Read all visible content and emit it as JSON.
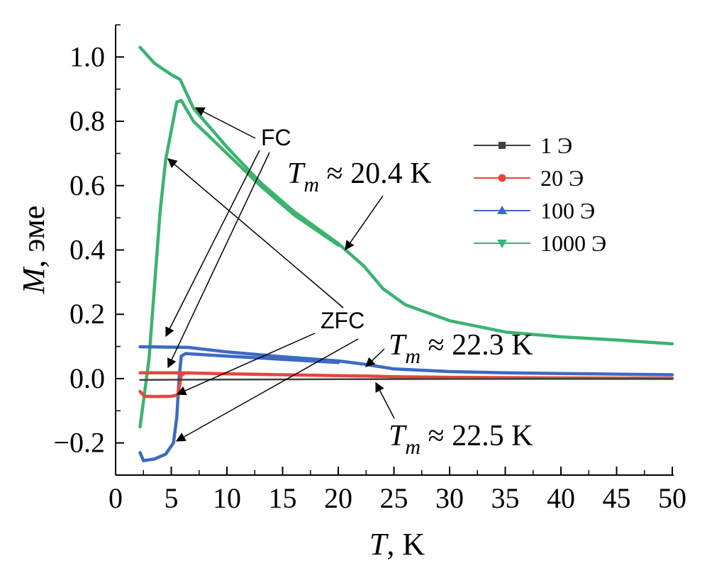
{
  "chart_data": {
    "type": "line",
    "xlabel": {
      "italic": "T",
      "rest": ", K"
    },
    "ylabel": {
      "italic": "M",
      "rest": ", эме"
    },
    "xlim": [
      0,
      50
    ],
    "ylim": [
      -0.3,
      1.1
    ],
    "xticks": [
      "0",
      "5",
      "10",
      "15",
      "20",
      "25",
      "30",
      "35",
      "40",
      "45",
      "50"
    ],
    "yticks": [
      "−0.2",
      "0.0",
      "0.2",
      "0.4",
      "0.6",
      "0.8",
      "1.0"
    ],
    "ytick_values": [
      -0.2,
      0.0,
      0.2,
      0.4,
      0.6,
      0.8,
      1.0
    ],
    "grid": false,
    "legend_position": "upper-right",
    "series": [
      {
        "name": "1 Э",
        "color": "#404040",
        "marker": "square",
        "fc": [
          [
            2.2,
            -0.004
          ],
          [
            10,
            -0.003
          ],
          [
            20,
            -0.002
          ],
          [
            30,
            -0.001
          ],
          [
            40,
            -0.001
          ],
          [
            50,
            -0.001
          ]
        ],
        "zfc": []
      },
      {
        "name": "20 Э",
        "color": "#e8453c",
        "marker": "circle",
        "fc": [
          [
            2.2,
            0.018
          ],
          [
            6,
            0.018
          ],
          [
            10,
            0.015
          ],
          [
            15,
            0.012
          ],
          [
            20,
            0.009
          ],
          [
            22.5,
            0.008
          ],
          [
            25,
            0.006
          ],
          [
            30,
            0.004
          ],
          [
            40,
            0.002
          ],
          [
            50,
            0.001
          ]
        ],
        "zfc": [
          [
            2.2,
            -0.04
          ],
          [
            2.6,
            -0.055
          ],
          [
            3.5,
            -0.056
          ],
          [
            5.0,
            -0.055
          ],
          [
            5.6,
            -0.05
          ],
          [
            5.9,
            0.01
          ],
          [
            6.1,
            0.015
          ]
        ]
      },
      {
        "name": "100 Э",
        "color": "#3c6bc2",
        "marker": "triangle-up",
        "fc": [
          [
            2.2,
            0.099
          ],
          [
            6.5,
            0.097
          ],
          [
            10,
            0.083
          ],
          [
            15,
            0.068
          ],
          [
            20,
            0.055
          ],
          [
            22.3,
            0.045
          ],
          [
            25,
            0.03
          ],
          [
            30,
            0.022
          ],
          [
            35,
            0.018
          ],
          [
            40,
            0.016
          ],
          [
            50,
            0.012
          ]
        ],
        "zfc": [
          [
            2.2,
            -0.23
          ],
          [
            2.5,
            -0.255
          ],
          [
            3.5,
            -0.25
          ],
          [
            4.5,
            -0.235
          ],
          [
            5.2,
            -0.2
          ],
          [
            5.5,
            -0.12
          ],
          [
            5.7,
            0.0
          ],
          [
            5.9,
            0.07
          ],
          [
            6.3,
            0.078
          ],
          [
            10,
            0.07
          ],
          [
            15,
            0.06
          ],
          [
            20,
            0.05
          ]
        ]
      },
      {
        "name": "1000 Э",
        "color": "#3cb371",
        "marker": "triangle-down",
        "fc": [
          [
            2.2,
            1.03
          ],
          [
            3.5,
            0.98
          ],
          [
            5.0,
            0.945
          ],
          [
            5.8,
            0.93
          ],
          [
            7,
            0.84
          ],
          [
            10,
            0.72
          ],
          [
            13,
            0.61
          ],
          [
            16,
            0.52
          ],
          [
            20,
            0.42
          ],
          [
            22.3,
            0.35
          ],
          [
            24,
            0.28
          ],
          [
            26,
            0.23
          ],
          [
            30,
            0.18
          ],
          [
            35,
            0.145
          ],
          [
            40,
            0.13
          ],
          [
            45,
            0.12
          ],
          [
            50,
            0.108
          ]
        ],
        "zfc": [
          [
            2.2,
            -0.15
          ],
          [
            3,
            0.06
          ],
          [
            4,
            0.52
          ],
          [
            4.5,
            0.68
          ],
          [
            5.5,
            0.86
          ],
          [
            5.9,
            0.865
          ],
          [
            7,
            0.8
          ],
          [
            10,
            0.7
          ],
          [
            13,
            0.6
          ],
          [
            16,
            0.51
          ],
          [
            20,
            0.415
          ]
        ]
      }
    ],
    "annotations": {
      "fc_label": "FC",
      "zfc_label": "ZFC",
      "tm": [
        {
          "italic": "T",
          "sub": "m",
          "rest": " ≈ 20.4 K"
        },
        {
          "italic": "T",
          "sub": "m",
          "rest": " ≈ 22.3 K"
        },
        {
          "italic": "T",
          "sub": "m",
          "rest": " ≈ 22.5 K"
        }
      ]
    }
  }
}
